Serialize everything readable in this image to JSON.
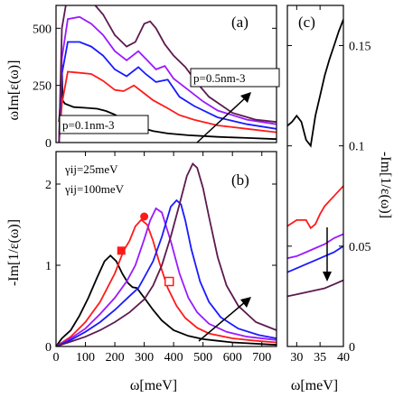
{
  "colors": {
    "black": "#000000",
    "red": "#ff1a1a",
    "blue": "#1a1aff",
    "violet": "#9b1aff",
    "purple": "#b21ee0",
    "maroon": "#5c1a4f"
  },
  "chart_data": [
    {
      "panel": "(a)",
      "type": "line",
      "ylabel": "ωIm[ε(ω)]",
      "xlim": [
        0,
        750
      ],
      "ylim": [
        0,
        600
      ],
      "yticks": [
        0,
        250,
        500
      ],
      "annotations": [
        "p=0.1nm-3",
        "p=0.5nm-3"
      ],
      "series": [
        {
          "color": "#000000",
          "x": [
            10,
            15,
            18,
            20,
            22,
            30,
            60,
            100,
            140,
            170,
            200,
            230,
            260,
            290,
            330,
            380,
            450,
            550,
            650,
            750
          ],
          "y": [
            90,
            180,
            300,
            340,
            185,
            170,
            155,
            152,
            148,
            138,
            122,
            100,
            80,
            65,
            50,
            40,
            32,
            25,
            20,
            15
          ]
        },
        {
          "color": "#ff1a1a",
          "x": [
            10,
            20,
            40,
            80,
            120,
            160,
            200,
            230,
            265,
            300,
            330,
            380,
            420,
            470,
            550,
            650,
            750
          ],
          "y": [
            0,
            170,
            310,
            305,
            300,
            270,
            230,
            225,
            250,
            215,
            185,
            150,
            120,
            100,
            75,
            60,
            45
          ]
        },
        {
          "color": "#1a1aff",
          "x": [
            10,
            20,
            40,
            80,
            120,
            160,
            200,
            240,
            280,
            305,
            340,
            380,
            420,
            470,
            550,
            650,
            750
          ],
          "y": [
            0,
            300,
            440,
            440,
            420,
            380,
            320,
            290,
            330,
            300,
            265,
            275,
            200,
            160,
            110,
            80,
            60
          ]
        },
        {
          "color": "#9b1aff",
          "x": [
            10,
            20,
            40,
            80,
            120,
            160,
            200,
            240,
            280,
            310,
            340,
            370,
            400,
            450,
            500,
            550,
            650,
            750
          ],
          "y": [
            0,
            370,
            540,
            550,
            520,
            470,
            400,
            360,
            400,
            360,
            320,
            335,
            280,
            230,
            180,
            140,
            100,
            80
          ]
        },
        {
          "color": "#5c1a4f",
          "x": [
            10,
            20,
            40,
            80,
            120,
            160,
            200,
            240,
            270,
            300,
            320,
            340,
            370,
            400,
            440,
            480,
            520,
            600,
            680,
            750
          ],
          "y": [
            0,
            500,
            650,
            650,
            620,
            560,
            470,
            420,
            440,
            520,
            530,
            500,
            430,
            380,
            330,
            260,
            200,
            130,
            100,
            90
          ]
        }
      ]
    },
    {
      "panel": "(b)",
      "type": "line",
      "ylabel": "-Im[1/ε(ω)]",
      "xlabel": "ω[meV]",
      "xlim": [
        0,
        750
      ],
      "ylim": [
        0,
        2.4
      ],
      "xticks": [
        0,
        100,
        200,
        300,
        400,
        500,
        600,
        700
      ],
      "yticks": [
        0,
        1,
        2
      ],
      "annotations": [
        "γij=25meV",
        "γij=100meV"
      ],
      "series": [
        {
          "color": "#000000",
          "x": [
            0,
            20,
            50,
            80,
            110,
            140,
            165,
            185,
            205,
            225,
            245,
            260,
            275,
            300,
            330,
            360,
            400,
            450,
            500,
            550,
            600,
            650,
            700,
            750
          ],
          "y": [
            0,
            0.1,
            0.2,
            0.38,
            0.6,
            0.85,
            1.05,
            1.12,
            1.05,
            0.9,
            0.78,
            0.73,
            0.72,
            0.6,
            0.45,
            0.32,
            0.2,
            0.13,
            0.09,
            0.07,
            0.05,
            0.04,
            0.03,
            0.02
          ]
        },
        {
          "color": "#ff1a1a",
          "x": [
            0,
            50,
            100,
            150,
            200,
            230,
            250,
            270,
            290,
            310,
            330,
            350,
            380,
            410,
            440,
            480,
            520,
            600,
            680,
            750
          ],
          "y": [
            0,
            0.12,
            0.3,
            0.55,
            0.9,
            1.18,
            1.3,
            1.48,
            1.56,
            1.5,
            1.3,
            1.05,
            0.72,
            0.5,
            0.35,
            0.23,
            0.16,
            0.1,
            0.07,
            0.05
          ]
        },
        {
          "color": "#9b1aff",
          "x": [
            0,
            50,
            100,
            150,
            200,
            240,
            270,
            300,
            320,
            340,
            360,
            390,
            420,
            450,
            480,
            520,
            580,
            650,
            750
          ],
          "y": [
            0,
            0.1,
            0.22,
            0.4,
            0.6,
            0.8,
            1.0,
            1.32,
            1.55,
            1.7,
            1.65,
            1.3,
            0.9,
            0.6,
            0.42,
            0.28,
            0.18,
            0.12,
            0.08
          ]
        },
        {
          "color": "#1a1aff",
          "x": [
            0,
            50,
            100,
            150,
            200,
            250,
            280,
            300,
            330,
            360,
            390,
            410,
            425,
            440,
            460,
            490,
            520,
            560,
            620,
            690,
            750
          ],
          "y": [
            0,
            0.08,
            0.18,
            0.3,
            0.45,
            0.62,
            0.72,
            0.85,
            1.05,
            1.35,
            1.72,
            1.8,
            1.75,
            1.55,
            1.2,
            0.8,
            0.55,
            0.36,
            0.22,
            0.14,
            0.1
          ]
        },
        {
          "color": "#5c1a4f",
          "x": [
            0,
            50,
            100,
            150,
            200,
            250,
            300,
            330,
            360,
            390,
            420,
            445,
            465,
            480,
            500,
            520,
            550,
            580,
            620,
            680,
            750
          ],
          "y": [
            0,
            0.06,
            0.12,
            0.2,
            0.3,
            0.42,
            0.58,
            0.75,
            1.0,
            1.35,
            1.75,
            2.1,
            2.25,
            2.2,
            1.95,
            1.6,
            1.1,
            0.75,
            0.5,
            0.3,
            0.2
          ]
        }
      ],
      "markers": [
        {
          "shape": "filled-square",
          "color": "#ff1a1a",
          "x": 222,
          "y": 1.18
        },
        {
          "shape": "filled-circle",
          "color": "#ff1a1a",
          "x": 300,
          "y": 1.6
        },
        {
          "shape": "open-square",
          "color": "#ff1a1a",
          "x": 385,
          "y": 0.8
        }
      ]
    },
    {
      "panel": "(c)",
      "type": "line",
      "ylabel": "-Im[1/ε(ω)]",
      "xlabel": "ω[meV]",
      "xlim": [
        28,
        40
      ],
      "ylim": [
        0,
        0.17
      ],
      "xticks": [
        30,
        35,
        40
      ],
      "yticks": [
        0,
        0.05,
        0.1,
        0.15
      ],
      "series": [
        {
          "color": "#000000",
          "x": [
            28,
            29,
            30,
            31,
            32,
            33,
            34,
            35,
            36,
            37,
            38,
            39,
            40
          ],
          "y": [
            0.11,
            0.112,
            0.115,
            0.112,
            0.103,
            0.1,
            0.115,
            0.125,
            0.135,
            0.143,
            0.15,
            0.157,
            0.163
          ]
        },
        {
          "color": "#ff1a1a",
          "x": [
            28,
            30,
            32,
            33,
            34,
            35,
            36,
            38,
            40
          ],
          "y": [
            0.06,
            0.063,
            0.063,
            0.059,
            0.061,
            0.066,
            0.07,
            0.075,
            0.08
          ]
        },
        {
          "color": "#9b1aff",
          "x": [
            28,
            30,
            32,
            34,
            36,
            38,
            40
          ],
          "y": [
            0.044,
            0.045,
            0.047,
            0.049,
            0.051,
            0.054,
            0.056
          ]
        },
        {
          "color": "#1a1aff",
          "x": [
            28,
            30,
            32,
            34,
            36,
            38,
            40
          ],
          "y": [
            0.037,
            0.039,
            0.041,
            0.043,
            0.045,
            0.047,
            0.05
          ]
        },
        {
          "color": "#5c1a4f",
          "x": [
            28,
            30,
            32,
            34,
            36,
            38,
            40
          ],
          "y": [
            0.025,
            0.026,
            0.027,
            0.028,
            0.029,
            0.031,
            0.033
          ]
        }
      ]
    }
  ]
}
